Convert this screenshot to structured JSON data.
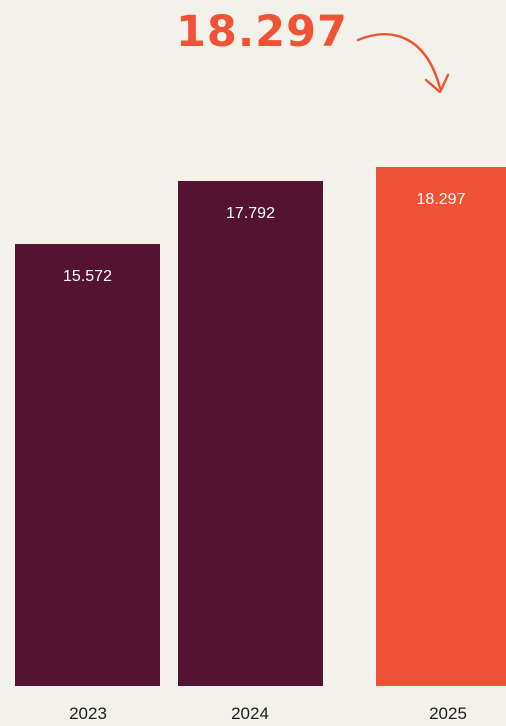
{
  "highlight": {
    "value_text": "18.297",
    "color": "#ef5235"
  },
  "chart_data": {
    "type": "bar",
    "categories": [
      "2023",
      "2024",
      "2025"
    ],
    "values": [
      15572,
      17792,
      18297
    ],
    "value_labels": [
      "15.572",
      "17.792",
      "18.297"
    ],
    "bar_colors": [
      "#531331",
      "#531331",
      "#ef5235"
    ],
    "title": "",
    "xlabel": "",
    "ylabel": "",
    "ylim": [
      0,
      20100
    ],
    "grid": false,
    "legend": "none",
    "arrow_annotation": {
      "target_category": "2025",
      "color": "#ef5235"
    }
  }
}
